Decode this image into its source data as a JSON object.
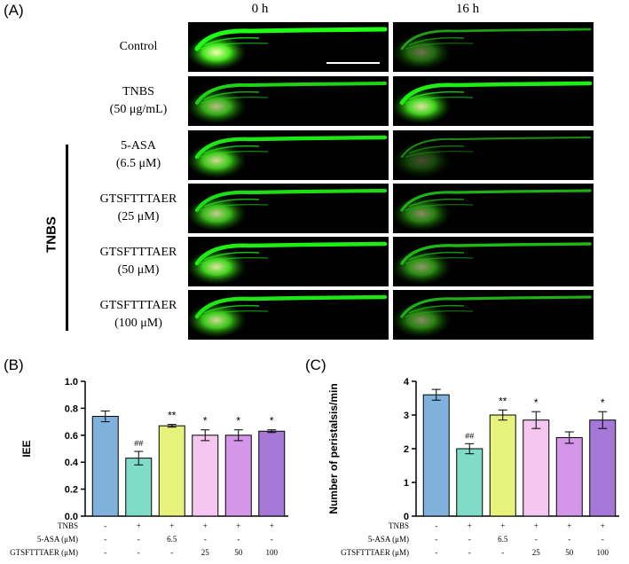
{
  "panelA": {
    "label": "(A)",
    "columns": [
      "0 h",
      "16 h"
    ],
    "group_label": "TNBS",
    "rows": [
      {
        "line1": "Control",
        "line2": ""
      },
      {
        "line1": "TNBS",
        "line2": "(50 μg/mL)"
      },
      {
        "line1": "5-ASA",
        "line2": "(6.5 μM)"
      },
      {
        "line1": "GTSFTTTAER",
        "line2": "(25 μM)"
      },
      {
        "line1": "GTSFTTTAER",
        "line2": "(50 μM)"
      },
      {
        "line1": "GTSFTTTAER",
        "line2": "(100 μM)"
      }
    ],
    "brightness_0h": [
      1.0,
      0.75,
      0.85,
      0.8,
      0.9,
      0.85
    ],
    "brightness_16h": [
      0.45,
      0.9,
      0.3,
      0.55,
      0.6,
      0.55
    ]
  },
  "panelB": {
    "label": "(B)",
    "chart_data": {
      "type": "bar",
      "ylabel": "IEE",
      "ylim": [
        0.0,
        1.0
      ],
      "yticks": [
        "0.0",
        "0.2",
        "0.4",
        "0.6",
        "0.8",
        "1.0"
      ],
      "values": [
        0.74,
        0.43,
        0.67,
        0.6,
        0.6,
        0.63
      ],
      "errors": [
        0.04,
        0.05,
        0.01,
        0.04,
        0.04,
        0.01
      ],
      "significance": [
        "",
        "##",
        "**",
        "*",
        "*",
        "*"
      ],
      "colors": [
        "#7fb1dc",
        "#7fdcc6",
        "#e6f27c",
        "#f5c6f0",
        "#d595e8",
        "#a577d6"
      ],
      "condition_rows": [
        {
          "label": "TNBS",
          "values": [
            "-",
            "+",
            "+",
            "+",
            "+",
            "+"
          ]
        },
        {
          "label": "5-ASA (μM)",
          "values": [
            "-",
            "-",
            "6.5",
            "-",
            "-",
            "-"
          ]
        },
        {
          "label": "GTSFTTTAER (μM)",
          "values": [
            "-",
            "-",
            "-",
            "25",
            "50",
            "100"
          ]
        }
      ]
    }
  },
  "panelC": {
    "label": "(C)",
    "chart_data": {
      "type": "bar",
      "ylabel": "Number of peristalsis/min",
      "ylim": [
        0,
        4
      ],
      "yticks": [
        "0",
        "1",
        "2",
        "3",
        "4"
      ],
      "values": [
        3.6,
        2.0,
        3.0,
        2.85,
        2.33,
        2.85
      ],
      "errors": [
        0.16,
        0.15,
        0.15,
        0.25,
        0.17,
        0.25
      ],
      "significance": [
        "",
        "##",
        "**",
        "*",
        "",
        "*"
      ],
      "colors": [
        "#7fb1dc",
        "#7fdcc6",
        "#e6f27c",
        "#f5c6f0",
        "#d595e8",
        "#a577d6"
      ],
      "condition_rows": [
        {
          "label": "TNBS",
          "values": [
            "-",
            "+",
            "+",
            "+",
            "+",
            "+"
          ]
        },
        {
          "label": "5-ASA (μM)",
          "values": [
            "-",
            "-",
            "6.5",
            "-",
            "-",
            "-"
          ]
        },
        {
          "label": "GTSFTTTAER (μM)",
          "values": [
            "-",
            "-",
            "-",
            "25",
            "50",
            "100"
          ]
        }
      ]
    }
  }
}
